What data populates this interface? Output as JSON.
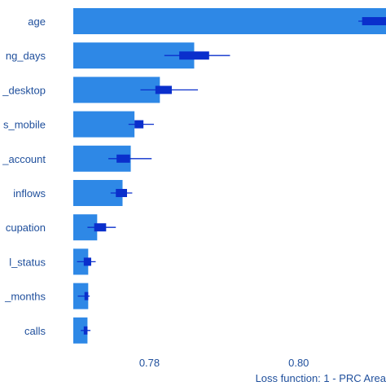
{
  "chart_data": {
    "type": "bar",
    "orientation": "horizontal",
    "xlabel": "Loss function: 1 - PRC Area",
    "ylabel": "",
    "title": "",
    "xlim": [
      0.7698,
      0.8117
    ],
    "x_ticks": [
      0.78,
      0.8
    ],
    "x_tick_labels": [
      "0.78",
      "0.80"
    ],
    "grid": false,
    "colors": {
      "bar": "#2e88e6",
      "box": "#0a2fcc",
      "whisker": "#0a2fcc",
      "text": "#1f4f9c"
    },
    "categories": [
      "age",
      "ng_days",
      "_desktop",
      "s_mobile",
      "_account",
      "inflows",
      "cupation",
      "l_status",
      "_months",
      "calls"
    ],
    "values": [
      0.8117,
      0.786,
      0.7814,
      0.778,
      0.7775,
      0.7764,
      0.773,
      0.7718,
      0.7718,
      0.7717
    ],
    "box": [
      {
        "q1": 0.8085,
        "q3": 0.8117,
        "min": 0.808,
        "max": 0.8117
      },
      {
        "q1": 0.784,
        "q3": 0.788,
        "min": 0.782,
        "max": 0.7908
      },
      {
        "q1": 0.7808,
        "q3": 0.783,
        "min": 0.7788,
        "max": 0.7865
      },
      {
        "q1": 0.778,
        "q3": 0.7792,
        "min": 0.7772,
        "max": 0.7806
      },
      {
        "q1": 0.7756,
        "q3": 0.7774,
        "min": 0.7745,
        "max": 0.7803
      },
      {
        "q1": 0.7755,
        "q3": 0.777,
        "min": 0.7748,
        "max": 0.7777
      },
      {
        "q1": 0.7726,
        "q3": 0.7742,
        "min": 0.7717,
        "max": 0.7755
      },
      {
        "q1": 0.7712,
        "q3": 0.7722,
        "min": 0.7703,
        "max": 0.7728
      },
      {
        "q1": 0.7713,
        "q3": 0.7718,
        "min": 0.7704,
        "max": 0.772
      },
      {
        "q1": 0.7712,
        "q3": 0.7717,
        "min": 0.7708,
        "max": 0.7721
      }
    ]
  }
}
